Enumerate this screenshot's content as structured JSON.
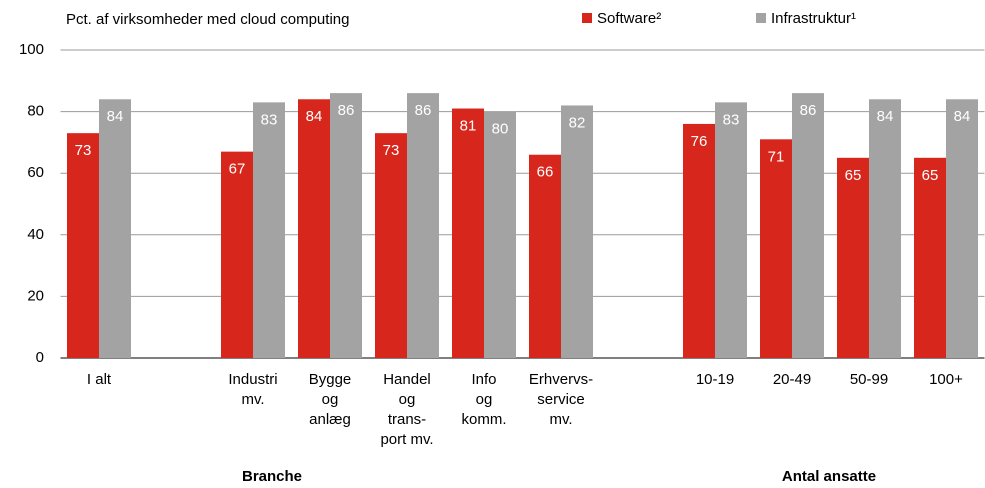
{
  "chart_data": {
    "type": "bar",
    "title": "Pct. af virksomheder med cloud computing",
    "categories": [
      [
        "I alt"
      ],
      null,
      [
        "Industri",
        "mv."
      ],
      [
        "Bygge",
        "og",
        "anlæg"
      ],
      [
        "Handel",
        "og",
        "trans-",
        "port mv."
      ],
      [
        "Info",
        "og",
        "komm."
      ],
      [
        "Erhvervs-",
        "service",
        "mv."
      ],
      null,
      [
        "10-19"
      ],
      [
        "20-49"
      ],
      [
        "50-99"
      ],
      [
        "100+"
      ]
    ],
    "series": [
      {
        "name": "Software²",
        "color": "#d7261c",
        "values": [
          73,
          null,
          67,
          84,
          73,
          81,
          66,
          null,
          76,
          71,
          65,
          65
        ]
      },
      {
        "name": "Infrastruktur¹",
        "color": "#a3a3a3",
        "values": [
          84,
          null,
          83,
          86,
          86,
          80,
          82,
          null,
          83,
          86,
          84,
          84
        ]
      }
    ],
    "group_labels": [
      "Branche",
      "Antal ansatte"
    ],
    "ylim": [
      0,
      100
    ],
    "yticks": [
      0,
      20,
      40,
      60,
      80,
      100
    ],
    "grid": true,
    "legend": "top-right"
  }
}
